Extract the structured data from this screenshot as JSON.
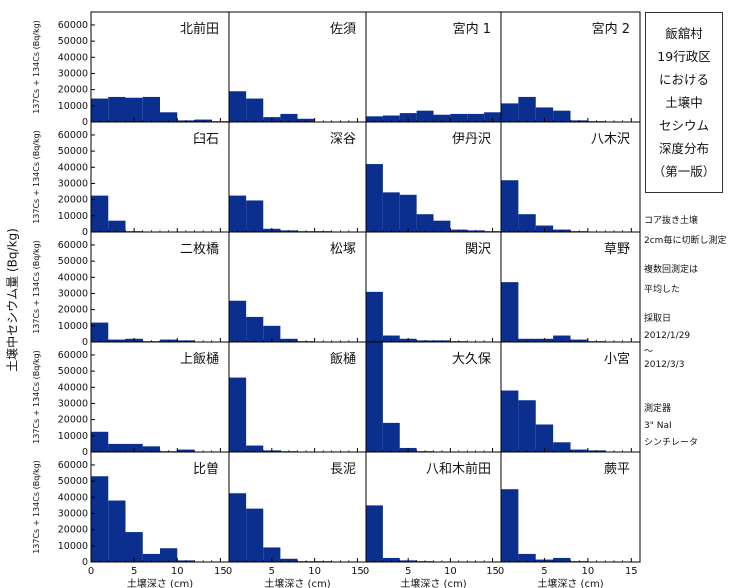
{
  "side_title_lines": [
    "飯舘村",
    "19行政区",
    "における",
    "土壌中",
    "セシウム",
    "深度分布",
    "（第一版）"
  ],
  "notes": {
    "core_1": "コア抜き土壌",
    "core_2": "2cm毎に切断し測定",
    "avg_1": "複数回測定は",
    "avg_2": "平均した",
    "date_label": "採取日",
    "date_start": "2012/1/29",
    "date_sep": "〜",
    "date_end": "2012/3/3",
    "instrument_label": "測定器",
    "instrument_1": "3\" NaI",
    "instrument_2": "シンチレータ"
  },
  "main_ylabel": "土壌中セシウム量 (Bq/kg)",
  "colors": {
    "bar": "#0a2f8f",
    "axis": "#000000",
    "background": "#ffffff"
  },
  "chart_data": {
    "type": "bar",
    "layout": "histogram-grid",
    "rows": 5,
    "cols": 4,
    "ylabel": "137Cs + 134Cs (Bq/kg)",
    "xlabel": "土壌深さ (cm)",
    "ylim": [
      0,
      68000
    ],
    "yticks": [
      0,
      10000,
      20000,
      30000,
      40000,
      50000,
      60000
    ],
    "xlim": [
      0,
      16
    ],
    "xticks": [
      0,
      5,
      10,
      15
    ],
    "bin_edges": [
      0,
      2,
      4,
      6,
      8,
      10,
      12,
      14,
      16
    ],
    "panels": [
      {
        "name": "北前田",
        "values": [
          14500,
          15500,
          15000,
          15500,
          6000,
          1000,
          1500,
          500
        ]
      },
      {
        "name": "佐須",
        "values": [
          19000,
          14500,
          3000,
          5000,
          2000,
          300,
          0,
          0
        ]
      },
      {
        "name": "宮内 1",
        "values": [
          3500,
          4000,
          5500,
          7000,
          4500,
          5000,
          5000,
          6000
        ]
      },
      {
        "name": "宮内 2",
        "values": [
          11500,
          15500,
          9000,
          7000,
          1000,
          500,
          0,
          0
        ]
      },
      {
        "name": "臼石",
        "values": [
          22500,
          7000,
          500,
          0,
          0,
          0,
          0,
          0
        ]
      },
      {
        "name": "深谷",
        "values": [
          22500,
          19500,
          2000,
          1000,
          500,
          500,
          0,
          0
        ]
      },
      {
        "name": "伊丹沢",
        "values": [
          42000,
          24500,
          23000,
          11000,
          7000,
          1500,
          1000,
          500
        ]
      },
      {
        "name": "八木沢",
        "values": [
          32000,
          11000,
          4000,
          1500,
          500,
          0,
          0,
          0
        ]
      },
      {
        "name": "二枚橋",
        "values": [
          12000,
          1500,
          2000,
          500,
          1500,
          1000,
          0,
          0
        ]
      },
      {
        "name": "松塚",
        "values": [
          25500,
          15500,
          10000,
          2000,
          500,
          0,
          0,
          0
        ]
      },
      {
        "name": "関沢",
        "values": [
          31000,
          4000,
          2000,
          1000,
          1000,
          500,
          0,
          0
        ]
      },
      {
        "name": "草野",
        "values": [
          37000,
          2000,
          2000,
          4000,
          1500,
          500,
          0,
          0
        ]
      },
      {
        "name": "上飯樋",
        "values": [
          12500,
          5000,
          5000,
          3500,
          500,
          1500,
          0,
          0
        ]
      },
      {
        "name": "飯樋",
        "values": [
          46000,
          4000,
          1000,
          500,
          0,
          0,
          0,
          0
        ]
      },
      {
        "name": "大久保",
        "values": [
          68000,
          18000,
          2500,
          500,
          0,
          0,
          0,
          0
        ]
      },
      {
        "name": "小宮",
        "values": [
          38000,
          32000,
          17000,
          6000,
          1500,
          1000,
          0,
          0
        ]
      },
      {
        "name": "比曽",
        "values": [
          53000,
          38000,
          18500,
          5000,
          8500,
          1000,
          0,
          0
        ]
      },
      {
        "name": "長泥",
        "values": [
          42500,
          33000,
          9000,
          2000,
          500,
          500,
          0,
          0
        ]
      },
      {
        "name": "八和木前田",
        "values": [
          35000,
          2500,
          1000,
          500,
          0,
          0,
          0,
          0
        ]
      },
      {
        "name": "蕨平",
        "values": [
          45000,
          5000,
          1500,
          2500,
          500,
          0,
          0,
          0
        ]
      }
    ]
  }
}
